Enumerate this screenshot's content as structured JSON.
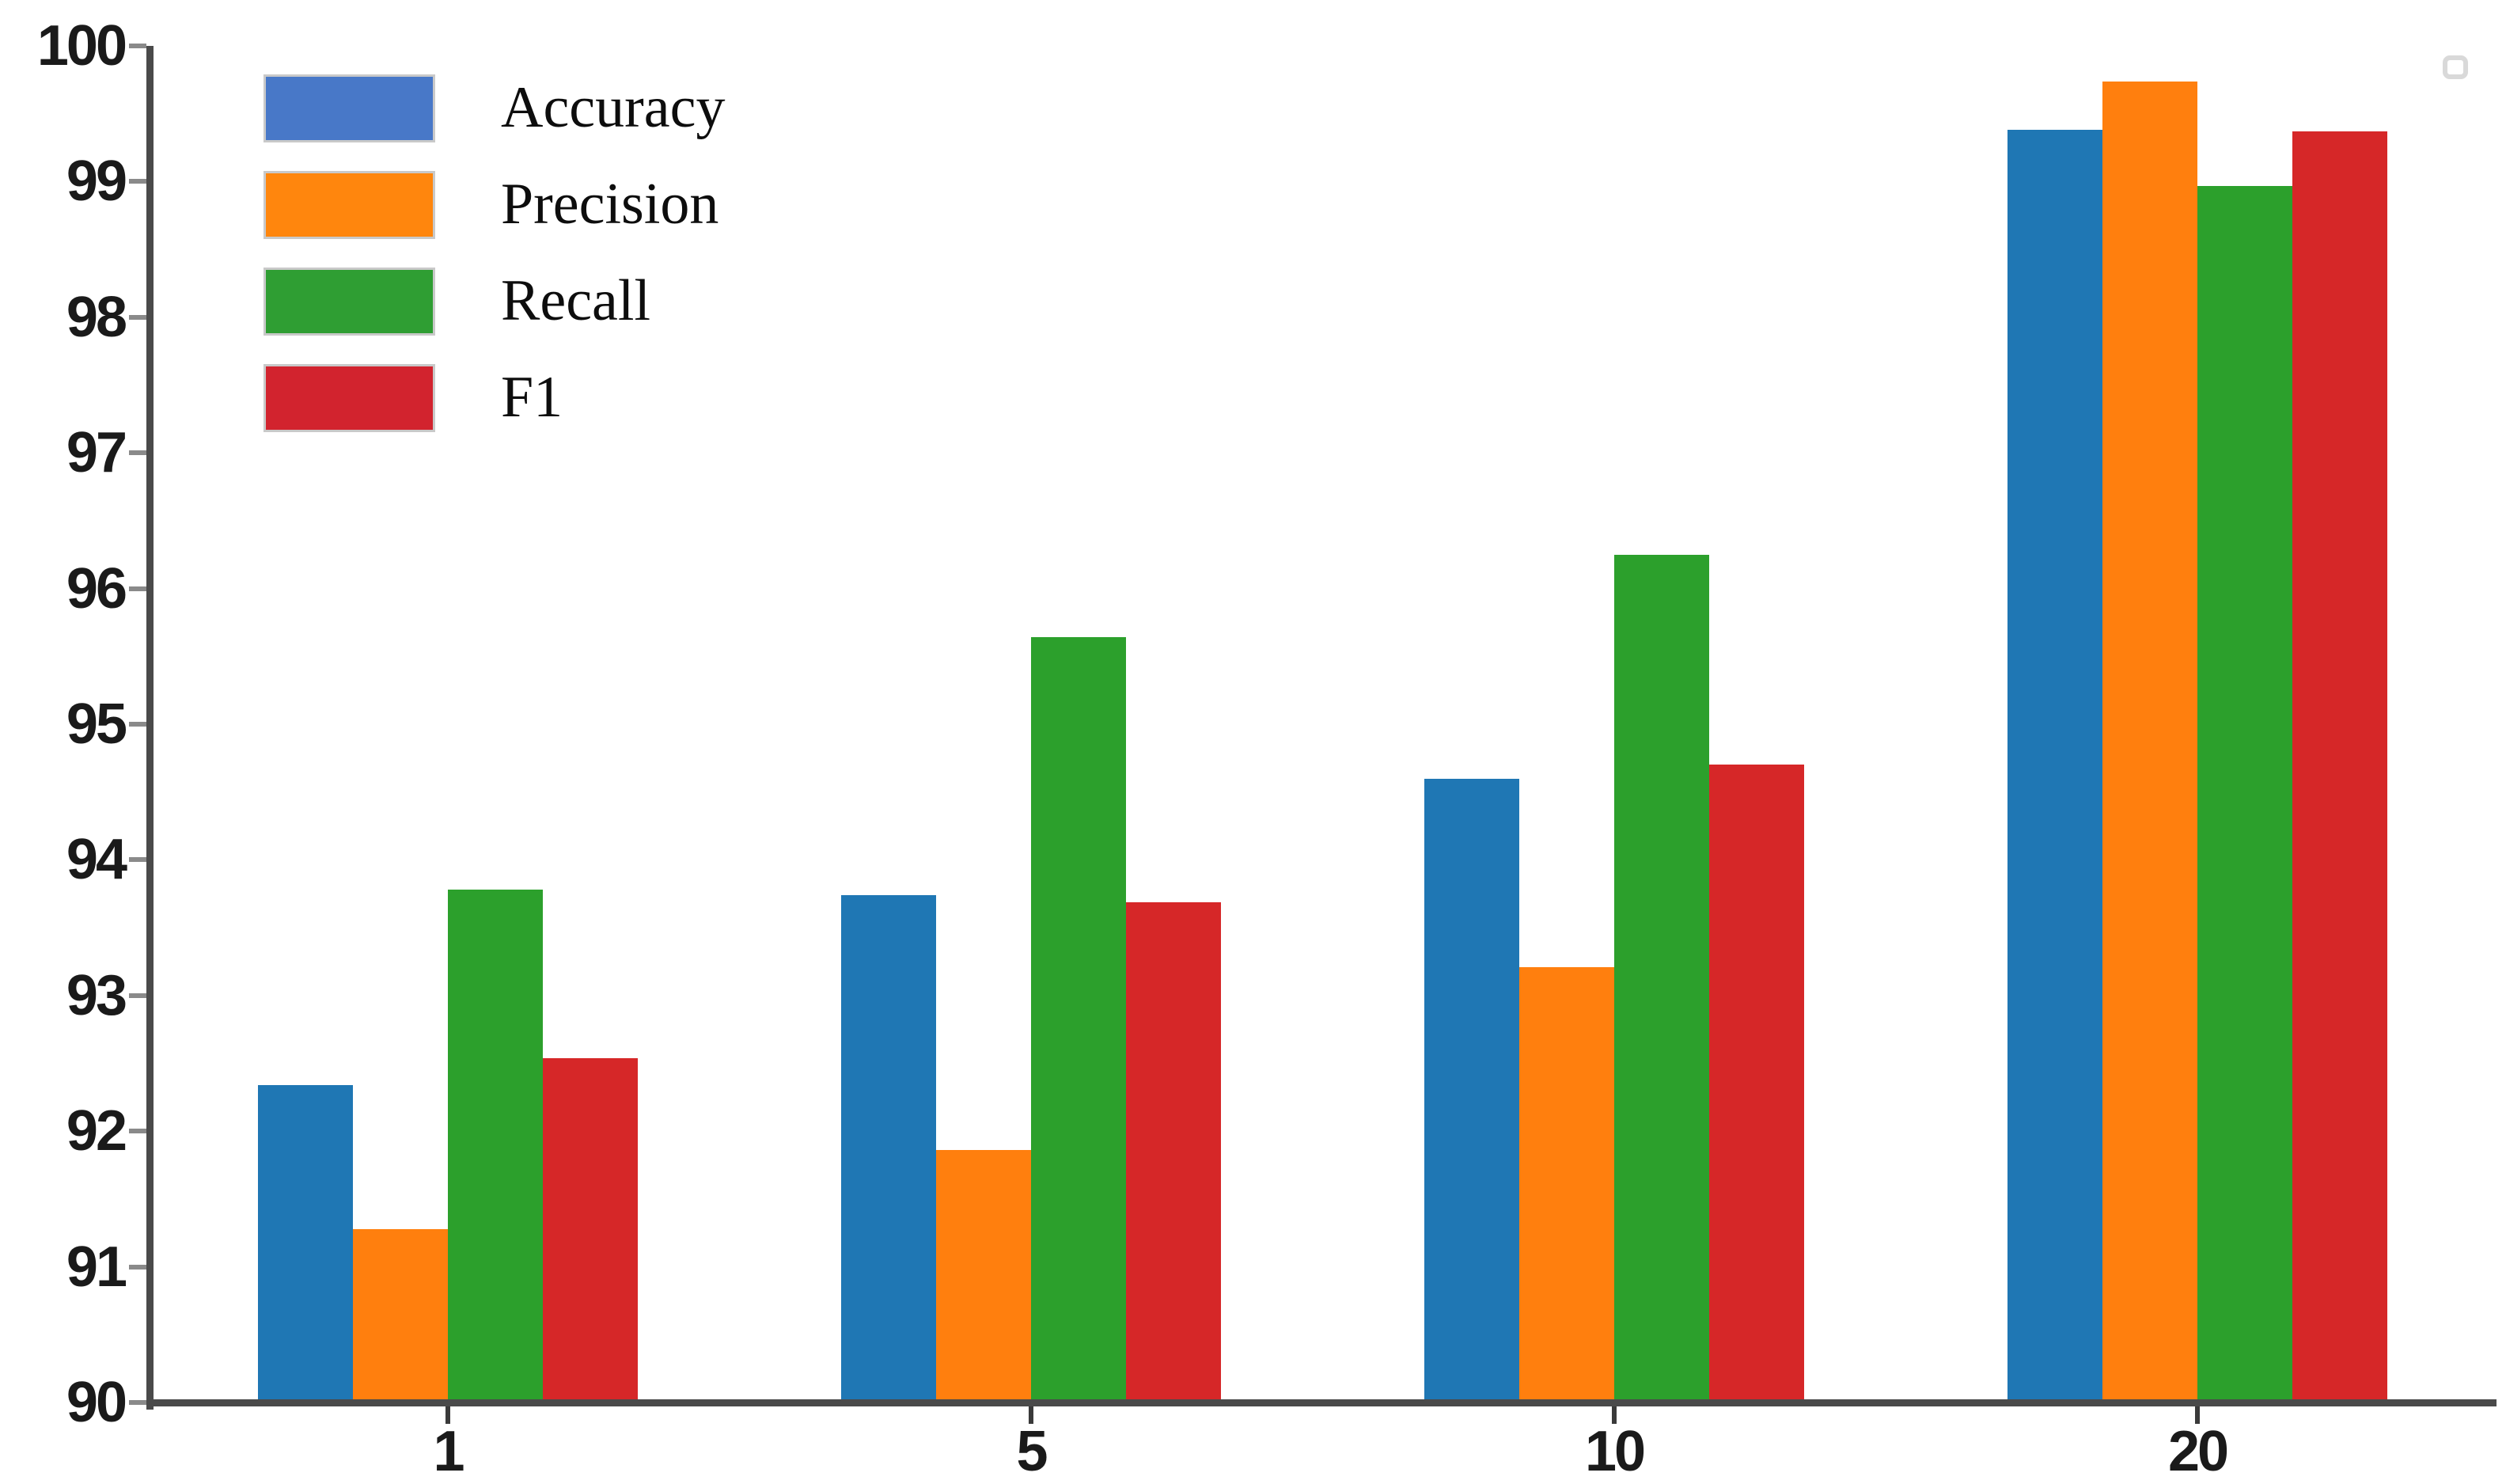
{
  "chart_data": {
    "type": "bar",
    "title": "",
    "xlabel": "",
    "ylabel": "",
    "categories": [
      "1",
      "5",
      "10",
      "20"
    ],
    "series": [
      {
        "name": "Accuracy",
        "color": "#1f77b4",
        "legend_color": "#4878c8",
        "values": [
          92.34,
          93.74,
          94.6,
          99.38
        ]
      },
      {
        "name": "Precision",
        "color": "#ff7f0e",
        "legend_color": "#ff860d",
        "values": [
          91.28,
          91.86,
          93.21,
          99.74
        ]
      },
      {
        "name": "Recall",
        "color": "#2ca02c",
        "legend_color": "#2f9e33",
        "values": [
          93.78,
          95.64,
          96.25,
          98.97
        ]
      },
      {
        "name": "F1",
        "color": "#d62728",
        "legend_color": "#d2232e",
        "values": [
          92.54,
          93.69,
          94.7,
          99.37
        ]
      }
    ],
    "ylim": [
      90,
      100
    ],
    "yticks": [
      100,
      99,
      98,
      97,
      96,
      95,
      94,
      93,
      92,
      91,
      90
    ],
    "legend_position": "upper-left",
    "grid": false
  },
  "axis": {
    "spine_color": "#4a4a4a",
    "ytick_color": "#8a8a8a",
    "xtick_color": "#3a3a3a",
    "tick_label_color": "#1a1a1a"
  },
  "decorations": {
    "artifact_icon": "rounded-square-outline",
    "artifact_color": "#d9d9d9"
  }
}
